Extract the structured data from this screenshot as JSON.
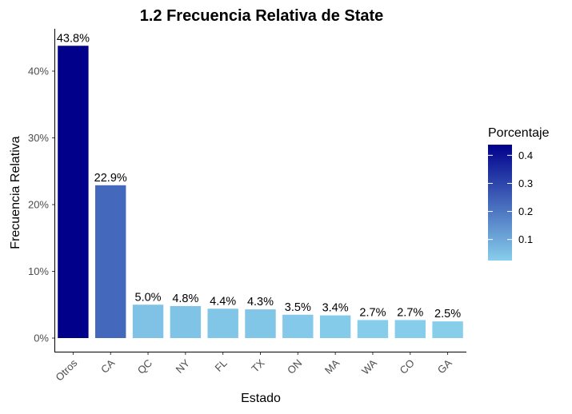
{
  "chart_data": {
    "type": "bar",
    "title": "1.2 Frecuencia Relativa de State",
    "xlabel": "Estado",
    "ylabel": "Frecuencia Relativa",
    "categories": [
      "Otros",
      "CA",
      "QC",
      "NY",
      "FL",
      "TX",
      "ON",
      "MA",
      "WA",
      "CO",
      "GA"
    ],
    "values": [
      0.438,
      0.229,
      0.05,
      0.048,
      0.044,
      0.043,
      0.035,
      0.034,
      0.027,
      0.027,
      0.025
    ],
    "data_labels": [
      "43.8%",
      "22.9%",
      "5.0%",
      "4.8%",
      "4.4%",
      "4.3%",
      "3.5%",
      "3.4%",
      "2.7%",
      "2.7%",
      "2.5%"
    ],
    "yticks": [
      0,
      0.1,
      0.2,
      0.3,
      0.4
    ],
    "ytick_labels": [
      "0%",
      "10%",
      "20%",
      "30%",
      "40%"
    ],
    "ylim": [
      0,
      0.438
    ],
    "grid": false,
    "legend": {
      "title": "Porcentaje",
      "placement": "right",
      "breaks": [
        0.1,
        0.2,
        0.3,
        0.4
      ],
      "labels": [
        "0.1",
        "0.2",
        "0.3",
        "0.4"
      ],
      "range": [
        0.025,
        0.438
      ],
      "color_low": "#87CEEB",
      "color_high": "#00008B"
    }
  }
}
